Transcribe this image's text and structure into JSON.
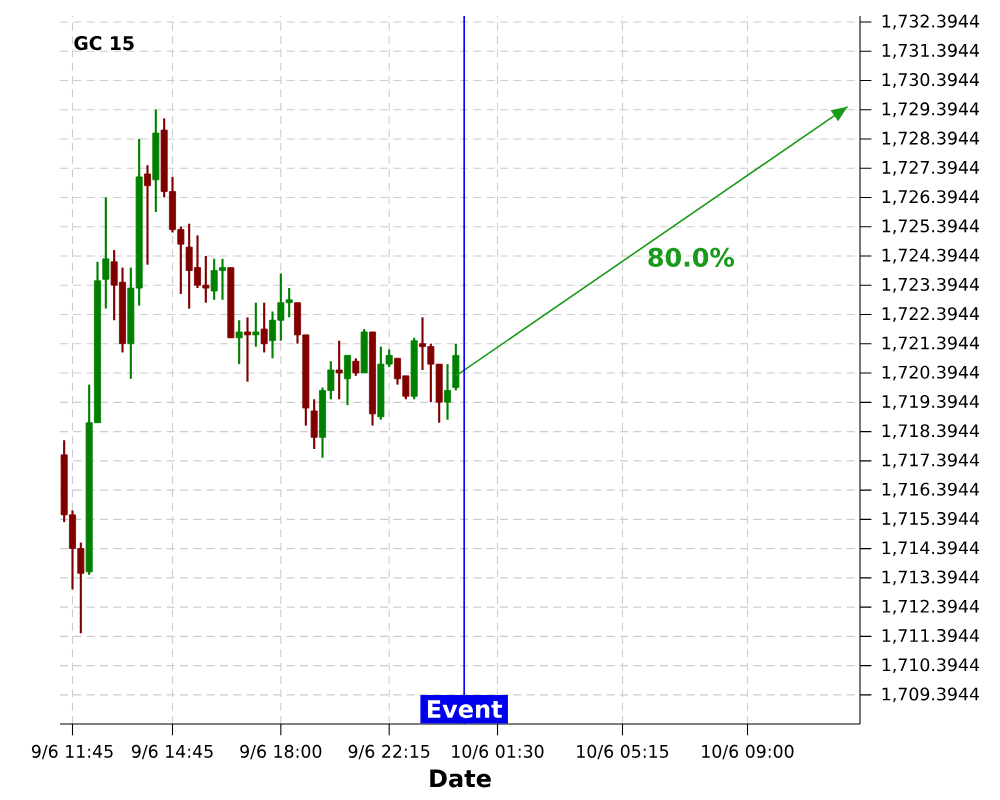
{
  "chart_data": {
    "type": "candlestick",
    "title": "GC 15",
    "xlabel": "Date",
    "categories": [
      null,
      "9/6 11:45",
      null,
      null,
      null,
      null,
      null,
      null,
      null,
      null,
      null,
      null,
      null,
      "9/6 14:45",
      null,
      null,
      null,
      null,
      null,
      null,
      null,
      null,
      null,
      null,
      null,
      null,
      "9/6 18:00",
      null,
      null,
      null,
      null,
      null,
      null,
      null,
      null,
      null,
      null,
      null,
      null,
      "9/6 22:15",
      null,
      null,
      null,
      null,
      null,
      null,
      null,
      null,
      null,
      null,
      null,
      null,
      "10/6 01:30",
      null,
      null,
      null,
      null,
      null,
      null,
      null,
      null,
      null,
      null,
      null,
      null,
      null,
      null,
      "10/6 05:15",
      null,
      null,
      null,
      null,
      null,
      null,
      null,
      null,
      null,
      null,
      null,
      null,
      null,
      null,
      "10/6 09:00",
      null,
      null,
      null,
      null,
      null,
      null,
      null,
      null,
      null,
      null,
      null,
      null,
      null
    ],
    "ohlc": [
      [
        1717.6,
        1718.1,
        1715.3,
        1715.55
      ],
      [
        1715.55,
        1715.7,
        1713.0,
        1714.4
      ],
      [
        1714.4,
        1714.6,
        1711.5,
        1713.55
      ],
      [
        1713.6,
        1720.0,
        1713.5,
        1718.7
      ],
      [
        1718.7,
        1724.2,
        1718.7,
        1723.55
      ],
      [
        1723.6,
        1726.4,
        1722.6,
        1724.3
      ],
      [
        1724.2,
        1724.6,
        1722.2,
        1723.4
      ],
      [
        1723.5,
        1724.0,
        1721.1,
        1721.4
      ],
      [
        1721.4,
        1724.0,
        1720.2,
        1723.3
      ],
      [
        1723.3,
        1728.4,
        1722.7,
        1727.1
      ],
      [
        1727.2,
        1727.5,
        1724.1,
        1726.8
      ],
      [
        1727.0,
        1729.4,
        1725.9,
        1728.6
      ],
      [
        1728.7,
        1729.1,
        1726.4,
        1726.6
      ],
      [
        1726.6,
        1727.1,
        1725.2,
        1725.3
      ],
      [
        1725.3,
        1725.4,
        1723.1,
        1724.8
      ],
      [
        1724.7,
        1725.5,
        1722.6,
        1723.9
      ],
      [
        1724.0,
        1725.1,
        1723.3,
        1723.4
      ],
      [
        1723.4,
        1724.4,
        1722.8,
        1723.3
      ],
      [
        1723.2,
        1724.3,
        1722.9,
        1723.9
      ],
      [
        1723.9,
        1724.3,
        1722.9,
        1724.0
      ],
      [
        1724.0,
        1724.0,
        1721.6,
        1721.6
      ],
      [
        1721.6,
        1722.2,
        1720.7,
        1721.8
      ],
      [
        1721.8,
        1722.3,
        1720.1,
        1721.7
      ],
      [
        1721.7,
        1722.8,
        1721.3,
        1721.8
      ],
      [
        1721.9,
        1722.8,
        1721.1,
        1721.4
      ],
      [
        1721.5,
        1722.5,
        1720.9,
        1722.2
      ],
      [
        1722.2,
        1723.8,
        1721.5,
        1722.8
      ],
      [
        1722.8,
        1723.3,
        1722.3,
        1722.9
      ],
      [
        1722.8,
        1722.8,
        1721.4,
        1721.7
      ],
      [
        1721.7,
        1721.7,
        1718.6,
        1719.2
      ],
      [
        1719.1,
        1719.5,
        1717.8,
        1718.2
      ],
      [
        1718.2,
        1719.9,
        1717.5,
        1719.8
      ],
      [
        1719.8,
        1720.8,
        1719.5,
        1720.5
      ],
      [
        1720.5,
        1721.5,
        1719.5,
        1720.4
      ],
      [
        1720.2,
        1721.0,
        1719.3,
        1721.0
      ],
      [
        1720.8,
        1720.9,
        1720.3,
        1720.4
      ],
      [
        1720.4,
        1721.9,
        1720.4,
        1721.8
      ],
      [
        1721.8,
        1721.8,
        1718.6,
        1719.0
      ],
      [
        1718.9,
        1721.3,
        1718.8,
        1720.7
      ],
      [
        1720.7,
        1721.2,
        1720.6,
        1721.0
      ],
      [
        1720.9,
        1720.9,
        1720.0,
        1720.2
      ],
      [
        1720.3,
        1720.3,
        1719.5,
        1719.6
      ],
      [
        1719.6,
        1721.6,
        1719.5,
        1721.5
      ],
      [
        1721.4,
        1722.3,
        1720.5,
        1721.3
      ],
      [
        1721.3,
        1721.4,
        1719.4,
        1720.7
      ],
      [
        1720.7,
        1720.7,
        1718.7,
        1719.4
      ],
      [
        1719.4,
        1720.7,
        1718.8,
        1719.8
      ],
      [
        1719.9,
        1721.4,
        1719.8,
        1721.0
      ],
      null,
      null,
      null,
      null,
      null,
      null,
      null,
      null,
      null,
      null,
      null,
      null,
      null,
      null,
      null,
      null,
      null,
      null,
      null,
      null,
      null,
      null,
      null,
      null,
      null,
      null,
      null,
      null,
      null,
      null,
      null,
      null,
      null,
      null,
      null,
      null,
      null,
      null,
      null,
      null,
      null,
      null,
      null,
      null,
      null,
      null,
      null,
      null
    ],
    "colors": [
      "#800000",
      "#800000",
      "#800000",
      "#008000",
      "#008000",
      "#008000",
      "#800000",
      "#800000",
      "#008000",
      "#008000",
      "#800000",
      "#008000",
      "#800000",
      "#800000",
      "#800000",
      "#800000",
      "#800000",
      "#800000",
      "#008000",
      "#008000",
      "#800000",
      "#008000",
      "#800000",
      "#008000",
      "#800000",
      "#008000",
      "#008000",
      "#008000",
      "#800000",
      "#800000",
      "#800000",
      "#008000",
      "#008000",
      "#800000",
      "#008000",
      "#800000",
      "#008000",
      "#800000",
      "#008000",
      "#008000",
      "#800000",
      "#800000",
      "#008000",
      "#800000",
      "#800000",
      "#800000",
      "#008000",
      "#008000",
      null,
      null,
      null,
      null,
      null,
      null,
      null,
      null,
      null,
      null,
      null,
      null,
      null,
      null,
      null,
      null,
      null,
      null,
      null,
      null,
      null,
      null,
      null,
      null,
      null,
      null,
      null,
      null,
      null,
      null,
      null,
      null,
      null,
      null,
      null,
      null,
      null,
      null,
      null,
      null,
      null,
      null,
      null,
      null,
      null,
      null,
      null,
      null
    ],
    "series": [
      {
        "type": "line",
        "color": "#1a9a1a",
        "values": [
          null,
          null,
          null,
          null,
          null,
          null,
          null,
          null,
          null,
          null,
          null,
          null,
          null,
          null,
          null,
          null,
          null,
          null,
          null,
          null,
          null,
          null,
          null,
          null,
          null,
          null,
          null,
          null,
          null,
          null,
          null,
          null,
          null,
          null,
          null,
          null,
          null,
          null,
          null,
          null,
          null,
          null,
          null,
          null,
          null,
          null,
          null,
          1720.3,
          null,
          null,
          null,
          null,
          null,
          null,
          null,
          null,
          null,
          null,
          null,
          null,
          null,
          null,
          null,
          null,
          null,
          null,
          null,
          null,
          null,
          null,
          null,
          null,
          null,
          null,
          null,
          null,
          null,
          null,
          null,
          null,
          null,
          null,
          null,
          null,
          null,
          null,
          null,
          null,
          null,
          null,
          null,
          null,
          null,
          null,
          1729.5,
          null
        ]
      }
    ],
    "annotations": [
      "Event",
      "80.0%"
    ],
    "ylim": [
      1708.4,
      1732.6
    ],
    "yticks": [
      {
        "value": 1709.3944,
        "label": "1,709.3944"
      },
      {
        "value": 1710.3944,
        "label": "1,710.3944"
      },
      {
        "value": 1711.3944,
        "label": "1,711.3944"
      },
      {
        "value": 1712.3944,
        "label": "1,712.3944"
      },
      {
        "value": 1713.3944,
        "label": "1,713.3944"
      },
      {
        "value": 1714.3944,
        "label": "1,714.3944"
      },
      {
        "value": 1715.3944,
        "label": "1,715.3944"
      },
      {
        "value": 1716.3944,
        "label": "1,716.3944"
      },
      {
        "value": 1717.3944,
        "label": "1,717.3944"
      },
      {
        "value": 1718.3944,
        "label": "1,718.3944"
      },
      {
        "value": 1719.3944,
        "label": "1,719.3944"
      },
      {
        "value": 1720.3944,
        "label": "1,720.3944"
      },
      {
        "value": 1721.3944,
        "label": "1,721.3944"
      },
      {
        "value": 1722.3944,
        "label": "1,722.3944"
      },
      {
        "value": 1723.3944,
        "label": "1,723.3944"
      },
      {
        "value": 1724.3944,
        "label": "1,724.3944"
      },
      {
        "value": 1725.3944,
        "label": "1,725.3944"
      },
      {
        "value": 1726.3944,
        "label": "1,726.3944"
      },
      {
        "value": 1727.3944,
        "label": "1,727.3944"
      },
      {
        "value": 1728.3944,
        "label": "1,728.3944"
      },
      {
        "value": 1729.3944,
        "label": "1,729.3944"
      },
      {
        "value": 1730.3944,
        "label": "1,730.3944"
      },
      {
        "value": 1731.3944,
        "label": "1,731.3944"
      },
      {
        "value": 1732.3944,
        "label": "1,732.3944"
      }
    ],
    "grid": true
  }
}
